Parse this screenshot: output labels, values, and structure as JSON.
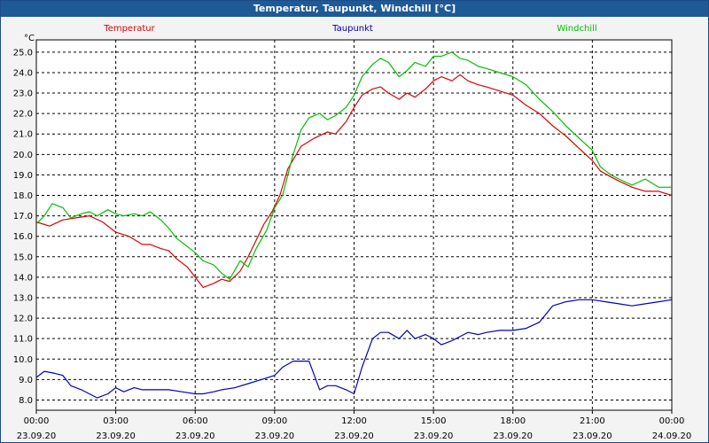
{
  "window": {
    "title": "Temperatur, Taupunkt, Windchill [°C]"
  },
  "chart_data": {
    "type": "line",
    "title": "Temperatur, Taupunkt, Windchill [°C]",
    "ylabel": "°C",
    "ylim": [
      7.5,
      25.6
    ],
    "y_ticks": [
      8.0,
      9.0,
      10.0,
      11.0,
      12.0,
      13.0,
      14.0,
      15.0,
      16.0,
      17.0,
      18.0,
      19.0,
      20.0,
      21.0,
      22.0,
      23.0,
      24.0,
      25.0
    ],
    "x_ticks": [
      {
        "time": "00:00",
        "date": "23.09.20"
      },
      {
        "time": "03:00",
        "date": "23.09.20"
      },
      {
        "time": "06:00",
        "date": "23.09.20"
      },
      {
        "time": "09:00",
        "date": "23.09.20"
      },
      {
        "time": "12:00",
        "date": "23.09.20"
      },
      {
        "time": "15:00",
        "date": "23.09.20"
      },
      {
        "time": "18:00",
        "date": "23.09.20"
      },
      {
        "time": "21:00",
        "date": "23.09.20"
      },
      {
        "time": "00:00",
        "date": "24.09.20"
      }
    ],
    "xlim": [
      0,
      24
    ],
    "grid": true,
    "legend_position": "top",
    "series": [
      {
        "name": "Temperatur",
        "color": "#e00000",
        "points": [
          [
            0,
            16.7
          ],
          [
            0.5,
            16.5
          ],
          [
            1,
            16.8
          ],
          [
            1.5,
            16.9
          ],
          [
            2,
            17.0
          ],
          [
            2.5,
            16.7
          ],
          [
            3,
            16.2
          ],
          [
            3.5,
            16.0
          ],
          [
            4,
            15.6
          ],
          [
            4.3,
            15.6
          ],
          [
            4.7,
            15.4
          ],
          [
            5,
            15.3
          ],
          [
            5.3,
            14.9
          ],
          [
            5.7,
            14.5
          ],
          [
            6,
            14.0
          ],
          [
            6.3,
            13.5
          ],
          [
            6.7,
            13.7
          ],
          [
            7,
            13.9
          ],
          [
            7.3,
            13.8
          ],
          [
            7.7,
            14.3
          ],
          [
            8,
            15.0
          ],
          [
            8.3,
            15.8
          ],
          [
            8.6,
            16.6
          ],
          [
            8.9,
            17.2
          ],
          [
            9.2,
            18.0
          ],
          [
            9.5,
            19.3
          ],
          [
            10,
            20.4
          ],
          [
            10.5,
            20.8
          ],
          [
            11,
            21.1
          ],
          [
            11.3,
            21.0
          ],
          [
            11.7,
            21.6
          ],
          [
            12,
            22.3
          ],
          [
            12.3,
            22.9
          ],
          [
            12.7,
            23.2
          ],
          [
            13,
            23.3
          ],
          [
            13.3,
            23.0
          ],
          [
            13.7,
            22.7
          ],
          [
            14,
            23.0
          ],
          [
            14.3,
            22.8
          ],
          [
            14.7,
            23.2
          ],
          [
            15,
            23.6
          ],
          [
            15.3,
            23.8
          ],
          [
            15.7,
            23.6
          ],
          [
            16,
            23.9
          ],
          [
            16.3,
            23.6
          ],
          [
            16.7,
            23.4
          ],
          [
            17,
            23.3
          ],
          [
            17.5,
            23.1
          ],
          [
            18,
            22.9
          ],
          [
            18.5,
            22.4
          ],
          [
            19,
            22.0
          ],
          [
            19.5,
            21.4
          ],
          [
            20,
            20.9
          ],
          [
            20.5,
            20.3
          ],
          [
            21,
            19.7
          ],
          [
            21.3,
            19.2
          ],
          [
            21.7,
            18.9
          ],
          [
            22,
            18.7
          ],
          [
            22.5,
            18.4
          ],
          [
            23,
            18.2
          ],
          [
            23.5,
            18.2
          ],
          [
            24,
            18.0
          ]
        ]
      },
      {
        "name": "Taupunkt",
        "color": "#0000c0",
        "points": [
          [
            0,
            9.1
          ],
          [
            0.3,
            9.4
          ],
          [
            0.7,
            9.3
          ],
          [
            1,
            9.2
          ],
          [
            1.3,
            8.7
          ],
          [
            1.7,
            8.5
          ],
          [
            2,
            8.3
          ],
          [
            2.3,
            8.1
          ],
          [
            2.7,
            8.3
          ],
          [
            3,
            8.6
          ],
          [
            3.3,
            8.4
          ],
          [
            3.7,
            8.6
          ],
          [
            4,
            8.5
          ],
          [
            4.5,
            8.5
          ],
          [
            5,
            8.5
          ],
          [
            5.5,
            8.4
          ],
          [
            6,
            8.3
          ],
          [
            6.3,
            8.3
          ],
          [
            6.7,
            8.4
          ],
          [
            7,
            8.5
          ],
          [
            7.5,
            8.6
          ],
          [
            8,
            8.8
          ],
          [
            8.5,
            9.0
          ],
          [
            9,
            9.2
          ],
          [
            9.3,
            9.6
          ],
          [
            9.7,
            9.9
          ],
          [
            10,
            9.9
          ],
          [
            10.3,
            9.9
          ],
          [
            10.7,
            8.5
          ],
          [
            11,
            8.7
          ],
          [
            11.3,
            8.7
          ],
          [
            11.7,
            8.5
          ],
          [
            12,
            8.3
          ],
          [
            12.3,
            9.6
          ],
          [
            12.7,
            11.0
          ],
          [
            13,
            11.3
          ],
          [
            13.3,
            11.3
          ],
          [
            13.7,
            11.0
          ],
          [
            14,
            11.4
          ],
          [
            14.3,
            11.0
          ],
          [
            14.7,
            11.2
          ],
          [
            15,
            11.0
          ],
          [
            15.3,
            10.7
          ],
          [
            15.7,
            10.9
          ],
          [
            16,
            11.1
          ],
          [
            16.3,
            11.3
          ],
          [
            16.7,
            11.2
          ],
          [
            17,
            11.3
          ],
          [
            17.5,
            11.4
          ],
          [
            18,
            11.4
          ],
          [
            18.5,
            11.5
          ],
          [
            19,
            11.8
          ],
          [
            19.5,
            12.6
          ],
          [
            20,
            12.8
          ],
          [
            20.5,
            12.9
          ],
          [
            21,
            12.9
          ],
          [
            21.5,
            12.8
          ],
          [
            22,
            12.7
          ],
          [
            22.5,
            12.6
          ],
          [
            23,
            12.7
          ],
          [
            23.5,
            12.8
          ],
          [
            24,
            12.9
          ]
        ]
      },
      {
        "name": "Windchill",
        "color": "#00c000",
        "points": [
          [
            0,
            16.6
          ],
          [
            0.3,
            17.0
          ],
          [
            0.6,
            17.6
          ],
          [
            1,
            17.4
          ],
          [
            1.3,
            16.9
          ],
          [
            1.7,
            17.1
          ],
          [
            2,
            17.2
          ],
          [
            2.3,
            17.0
          ],
          [
            2.7,
            17.3
          ],
          [
            3,
            17.1
          ],
          [
            3.3,
            17.0
          ],
          [
            3.7,
            17.1
          ],
          [
            4,
            17.0
          ],
          [
            4.3,
            17.2
          ],
          [
            4.7,
            16.8
          ],
          [
            5,
            16.4
          ],
          [
            5.3,
            15.9
          ],
          [
            5.7,
            15.5
          ],
          [
            6,
            15.2
          ],
          [
            6.3,
            14.8
          ],
          [
            6.7,
            14.6
          ],
          [
            7,
            14.2
          ],
          [
            7.3,
            13.9
          ],
          [
            7.7,
            14.8
          ],
          [
            8,
            14.5
          ],
          [
            8.3,
            15.4
          ],
          [
            8.7,
            16.3
          ],
          [
            9,
            17.4
          ],
          [
            9.3,
            18.0
          ],
          [
            9.7,
            20.0
          ],
          [
            10,
            21.2
          ],
          [
            10.3,
            21.8
          ],
          [
            10.7,
            22.0
          ],
          [
            11,
            21.7
          ],
          [
            11.3,
            21.9
          ],
          [
            11.7,
            22.3
          ],
          [
            12,
            22.9
          ],
          [
            12.3,
            23.8
          ],
          [
            12.7,
            24.4
          ],
          [
            13,
            24.7
          ],
          [
            13.3,
            24.5
          ],
          [
            13.7,
            23.8
          ],
          [
            14,
            24.1
          ],
          [
            14.3,
            24.5
          ],
          [
            14.7,
            24.3
          ],
          [
            15,
            24.8
          ],
          [
            15.3,
            24.8
          ],
          [
            15.7,
            25.0
          ],
          [
            16,
            24.7
          ],
          [
            16.3,
            24.6
          ],
          [
            16.7,
            24.3
          ],
          [
            17,
            24.2
          ],
          [
            17.5,
            24.0
          ],
          [
            18,
            23.8
          ],
          [
            18.5,
            23.4
          ],
          [
            19,
            22.7
          ],
          [
            19.5,
            22.1
          ],
          [
            20,
            21.4
          ],
          [
            20.5,
            20.8
          ],
          [
            21,
            20.2
          ],
          [
            21.3,
            19.4
          ],
          [
            21.7,
            19.0
          ],
          [
            22,
            18.8
          ],
          [
            22.5,
            18.5
          ],
          [
            23,
            18.8
          ],
          [
            23.5,
            18.4
          ],
          [
            24,
            18.4
          ]
        ]
      }
    ]
  }
}
